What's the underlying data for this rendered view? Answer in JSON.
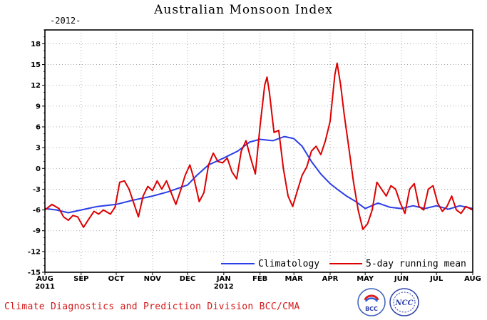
{
  "title": "Australian Monsoon Index",
  "subtitle": "-2012-",
  "footer": "Climate Diagnostics and Prediction Division   BCC/CMA",
  "logos": [
    "BCC",
    "NCC"
  ],
  "colors": {
    "climatology": "#2b3fe8",
    "running_mean": "#dd0000",
    "daily": "#000000",
    "footer": "#d21a1a"
  },
  "chart_data": {
    "type": "line",
    "title": "Australian Monsoon Index",
    "ylim": [
      -15,
      20
    ],
    "yticks": [
      -15,
      -12,
      -9,
      -6,
      -3,
      0,
      3,
      6,
      9,
      12,
      15,
      18
    ],
    "xticks": [
      {
        "label": "AUG",
        "sub": "2011",
        "day": 0
      },
      {
        "label": "SEP",
        "sub": "",
        "day": 31
      },
      {
        "label": "OCT",
        "sub": "",
        "day": 61
      },
      {
        "label": "NOV",
        "sub": "",
        "day": 92
      },
      {
        "label": "DEC",
        "sub": "",
        "day": 122
      },
      {
        "label": "JAN",
        "sub": "2012",
        "day": 153
      },
      {
        "label": "FEB",
        "sub": "",
        "day": 184
      },
      {
        "label": "MAR",
        "sub": "",
        "day": 213
      },
      {
        "label": "APR",
        "sub": "",
        "day": 244
      },
      {
        "label": "MAY",
        "sub": "",
        "day": 274
      },
      {
        "label": "JUN",
        "sub": "",
        "day": 305
      },
      {
        "label": "JUL",
        "sub": "",
        "day": 335
      },
      {
        "label": "AUG",
        "sub": "",
        "day": 366
      }
    ],
    "grid": true,
    "legend": "bottom-right",
    "series": [
      {
        "name": "Climatology",
        "style": "line",
        "points": [
          [
            0,
            -5.8
          ],
          [
            10,
            -6.0
          ],
          [
            20,
            -6.4
          ],
          [
            31,
            -6.0
          ],
          [
            45,
            -5.5
          ],
          [
            61,
            -5.2
          ],
          [
            75,
            -4.6
          ],
          [
            92,
            -4.0
          ],
          [
            105,
            -3.4
          ],
          [
            122,
            -2.4
          ],
          [
            130,
            -1.0
          ],
          [
            140,
            0.5
          ],
          [
            153,
            1.5
          ],
          [
            165,
            2.5
          ],
          [
            175,
            3.8
          ],
          [
            184,
            4.2
          ],
          [
            195,
            4.0
          ],
          [
            205,
            4.6
          ],
          [
            213,
            4.3
          ],
          [
            220,
            3.2
          ],
          [
            228,
            1.0
          ],
          [
            236,
            -0.8
          ],
          [
            244,
            -2.2
          ],
          [
            250,
            -3.0
          ],
          [
            258,
            -4.0
          ],
          [
            266,
            -4.8
          ],
          [
            274,
            -5.8
          ],
          [
            285,
            -5.0
          ],
          [
            295,
            -5.6
          ],
          [
            305,
            -5.8
          ],
          [
            315,
            -5.4
          ],
          [
            325,
            -5.8
          ],
          [
            335,
            -5.4
          ],
          [
            345,
            -5.9
          ],
          [
            355,
            -5.4
          ],
          [
            366,
            -5.8
          ]
        ]
      },
      {
        "name": "5-day running mean",
        "style": "line",
        "points": [
          [
            0,
            -6.0
          ],
          [
            6,
            -5.2
          ],
          [
            12,
            -5.8
          ],
          [
            16,
            -7.0
          ],
          [
            20,
            -7.5
          ],
          [
            24,
            -6.8
          ],
          [
            28,
            -7.0
          ],
          [
            33,
            -8.5
          ],
          [
            38,
            -7.2
          ],
          [
            42,
            -6.2
          ],
          [
            46,
            -6.6
          ],
          [
            50,
            -6.0
          ],
          [
            56,
            -6.6
          ],
          [
            60,
            -5.6
          ],
          [
            64,
            -2.0
          ],
          [
            68,
            -1.8
          ],
          [
            72,
            -3.0
          ],
          [
            76,
            -5.0
          ],
          [
            80,
            -7.0
          ],
          [
            84,
            -4.0
          ],
          [
            88,
            -2.6
          ],
          [
            92,
            -3.2
          ],
          [
            96,
            -1.8
          ],
          [
            100,
            -3.0
          ],
          [
            104,
            -1.8
          ],
          [
            108,
            -3.5
          ],
          [
            112,
            -5.2
          ],
          [
            116,
            -3.2
          ],
          [
            120,
            -1.0
          ],
          [
            124,
            0.5
          ],
          [
            128,
            -1.8
          ],
          [
            132,
            -4.8
          ],
          [
            136,
            -3.5
          ],
          [
            140,
            0.5
          ],
          [
            144,
            2.2
          ],
          [
            148,
            1.0
          ],
          [
            152,
            0.8
          ],
          [
            156,
            1.5
          ],
          [
            160,
            -0.5
          ],
          [
            164,
            -1.5
          ],
          [
            168,
            2.5
          ],
          [
            172,
            4.0
          ],
          [
            176,
            1.5
          ],
          [
            180,
            -0.8
          ],
          [
            184,
            6.0
          ],
          [
            188,
            12.0
          ],
          [
            190,
            13.2
          ],
          [
            192,
            11.0
          ],
          [
            196,
            5.2
          ],
          [
            200,
            5.5
          ],
          [
            204,
            0.0
          ],
          [
            208,
            -4.0
          ],
          [
            212,
            -5.5
          ],
          [
            216,
            -3.2
          ],
          [
            220,
            -1.0
          ],
          [
            224,
            0.2
          ],
          [
            228,
            2.5
          ],
          [
            232,
            3.2
          ],
          [
            236,
            2.0
          ],
          [
            240,
            4.0
          ],
          [
            244,
            6.8
          ],
          [
            248,
            13.5
          ],
          [
            250,
            15.2
          ],
          [
            253,
            12.0
          ],
          [
            256,
            7.8
          ],
          [
            260,
            3.0
          ],
          [
            264,
            -2.0
          ],
          [
            268,
            -6.0
          ],
          [
            272,
            -8.8
          ],
          [
            276,
            -8.0
          ],
          [
            280,
            -6.0
          ],
          [
            284,
            -2.0
          ],
          [
            288,
            -3.0
          ],
          [
            292,
            -4.0
          ],
          [
            296,
            -2.5
          ],
          [
            300,
            -3.0
          ],
          [
            304,
            -5.0
          ],
          [
            308,
            -6.5
          ],
          [
            312,
            -3.0
          ],
          [
            316,
            -2.2
          ],
          [
            320,
            -5.5
          ],
          [
            324,
            -6.0
          ],
          [
            328,
            -3.0
          ],
          [
            332,
            -2.5
          ],
          [
            336,
            -5.0
          ],
          [
            340,
            -6.2
          ],
          [
            344,
            -5.5
          ],
          [
            348,
            -4.0
          ],
          [
            352,
            -6.0
          ],
          [
            356,
            -6.5
          ],
          [
            360,
            -5.5
          ],
          [
            366,
            -6.0
          ]
        ]
      }
    ]
  }
}
